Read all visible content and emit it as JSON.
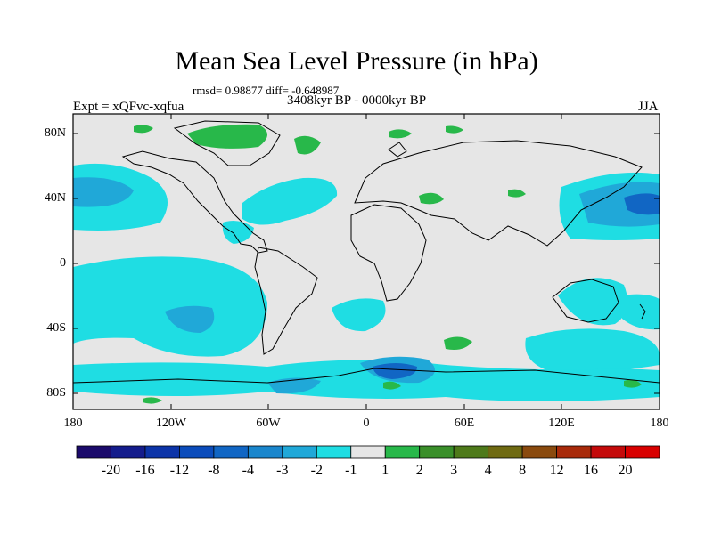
{
  "title": "Mean Sea Level Pressure (in hPa)",
  "stats": "rmsd= 0.98877 diff= -0.648987",
  "experiment": "Expt = xQFvc-xqfua",
  "period": "3408kyr BP - 0000kyr BP",
  "season": "JJA",
  "lat_labels": [
    "80N",
    "40N",
    "0",
    "40S",
    "80S"
  ],
  "lon_labels": [
    "180",
    "120W",
    "60W",
    "0",
    "60E",
    "120E",
    "180"
  ],
  "colorbar": {
    "labels": [
      "-20",
      "-16",
      "-12",
      "-8",
      "-4",
      "-3",
      "-2",
      "-1",
      "1",
      "2",
      "3",
      "4",
      "8",
      "12",
      "16",
      "20"
    ],
    "colors": [
      "#1b0a6b",
      "#141c8c",
      "#0c34a8",
      "#0b4cbb",
      "#1166c4",
      "#1a86cc",
      "#20a8d8",
      "#1fdde3",
      "#e6e6e6",
      "#28b84a",
      "#3a8f2a",
      "#4e7a1a",
      "#6f6a12",
      "#8a4a0e",
      "#a82a0a",
      "#c40a0a",
      "#d80000"
    ]
  },
  "colors": {
    "ocean_background": "#e6e6e6",
    "coast": "#000000"
  }
}
